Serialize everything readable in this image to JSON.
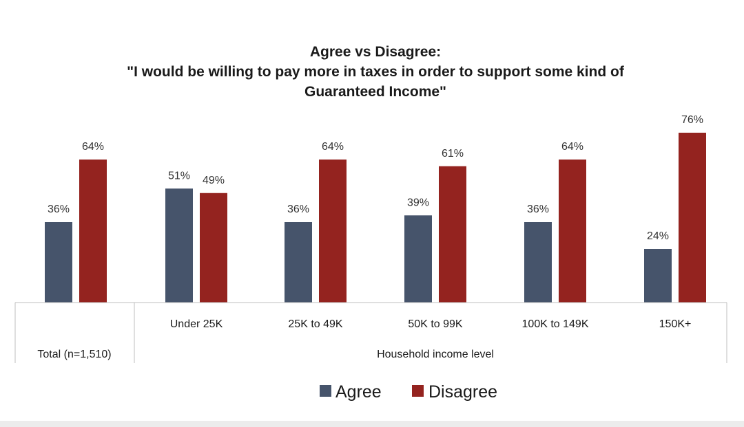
{
  "chart_data": {
    "type": "bar",
    "title_lines": [
      "Agree vs Disagree:",
      "\"I would be willing to pay more in taxes in order to support some kind of",
      "Guaranteed Income\""
    ],
    "categories": [
      "Total (n=1,510)",
      "Under 25K",
      "25K to 49K",
      "50K to 99K",
      "100K to 149K",
      "150K+"
    ],
    "group_label": "Household income level",
    "series": [
      {
        "name": "Agree",
        "color": "#46546b",
        "values": [
          36,
          51,
          36,
          39,
          36,
          24
        ],
        "labels": [
          "36%",
          "51%",
          "36%",
          "39%",
          "36%",
          "24%"
        ]
      },
      {
        "name": "Disagree",
        "color": "#94231f",
        "values": [
          64,
          49,
          64,
          61,
          64,
          76
        ],
        "labels": [
          "64%",
          "49%",
          "64%",
          "61%",
          "64%",
          "76%"
        ]
      }
    ],
    "ylim": [
      0,
      100
    ],
    "grid": false,
    "legend_position": "bottom"
  }
}
